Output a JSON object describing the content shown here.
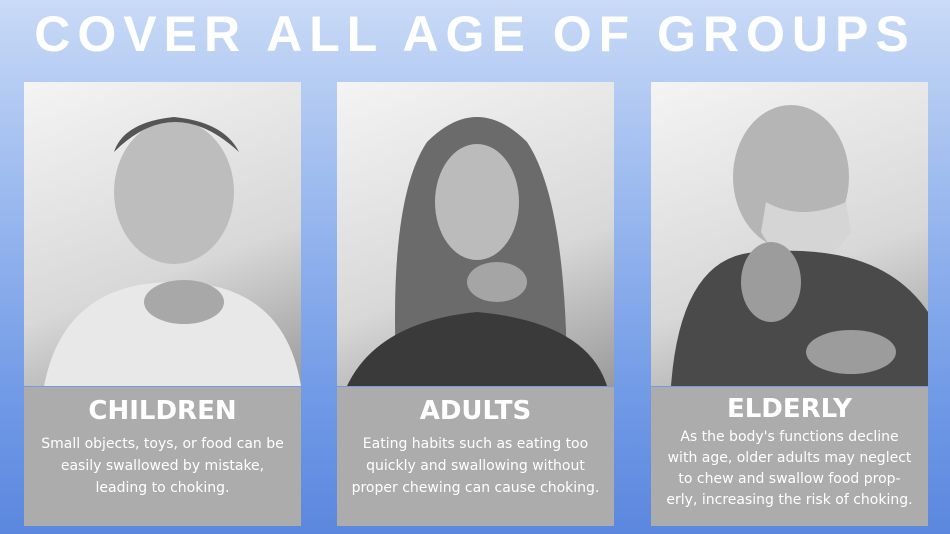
{
  "title": "COVER ALL AGE OF GROUPS",
  "cards": [
    {
      "heading": "CHILDREN",
      "photo": "child-choking-photo",
      "lines": [
        "Small objects, toys, or food can be",
        "easily swallowed by mistake,",
        "leading to choking."
      ]
    },
    {
      "heading": "ADULTS",
      "photo": "adult-choking-photo",
      "lines": [
        "Eating habits such as eating too",
        "quickly and swallowing without",
        "proper chewing can cause choking."
      ]
    },
    {
      "heading": "ELDERLY",
      "photo": "elderly-choking-photo",
      "lines": [
        "As the body's functions decline",
        "with age, older adults may neglect",
        "to chew and swallow food prop-",
        "erly, increasing the risk of choking."
      ]
    }
  ],
  "colors": {
    "panel": "#acacac",
    "background_top": "#c9daf6",
    "background_bottom": "#5b87de",
    "text": "#ffffff"
  }
}
